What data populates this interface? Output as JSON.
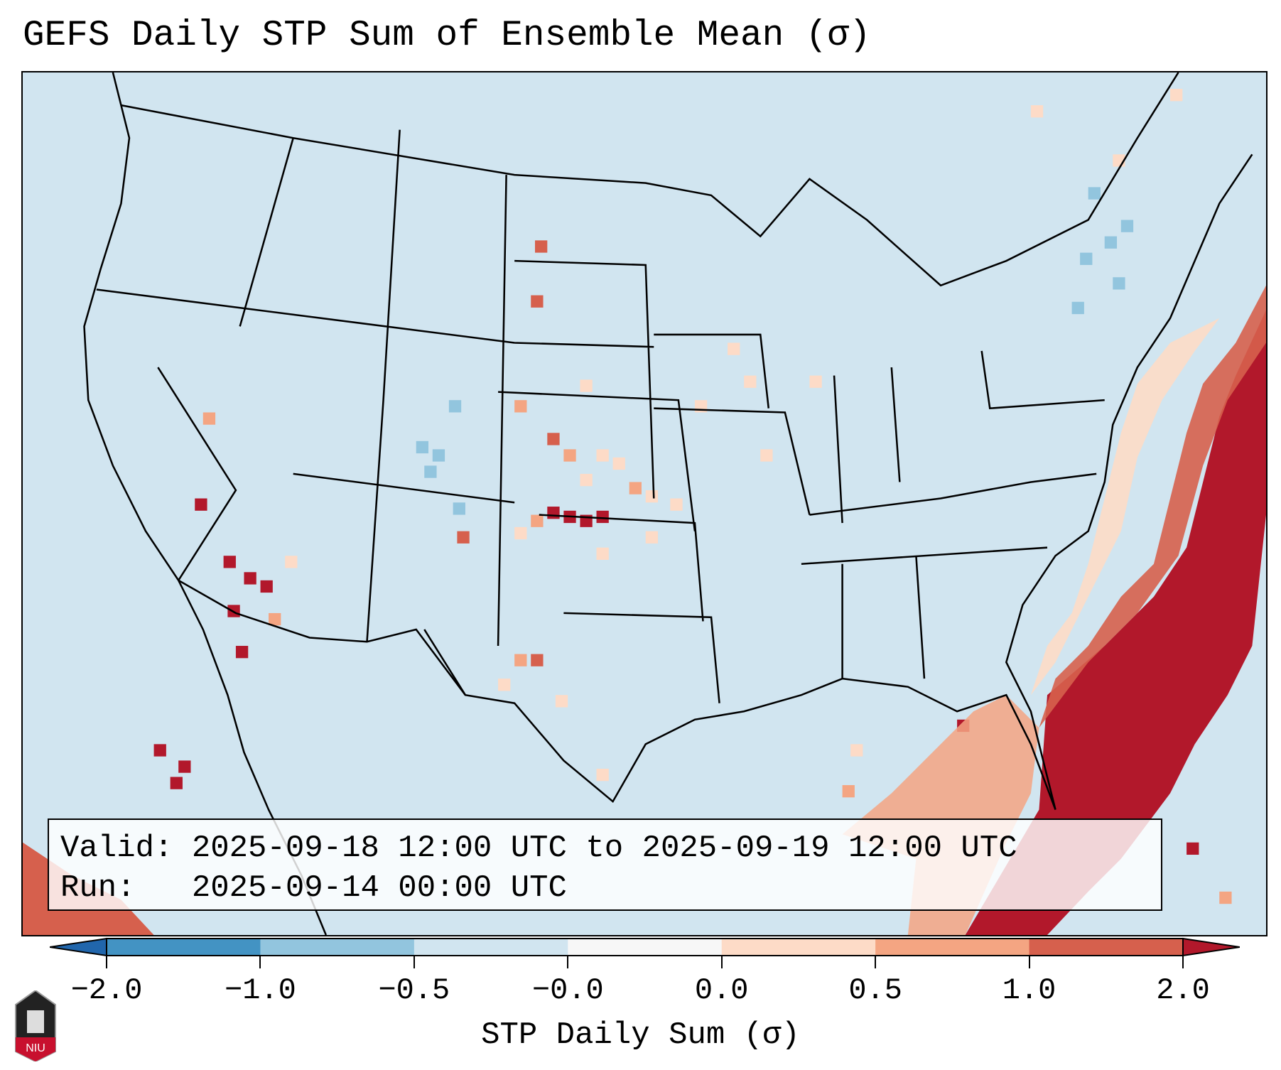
{
  "title": "GEFS Daily STP Sum of Ensemble Mean (σ)",
  "info_box": {
    "valid_label": "Valid:",
    "valid_value": "2025-09-18 12:00 UTC to 2025-09-19 12:00 UTC",
    "run_label": "Run:",
    "run_value": "2025-09-14 00:00 UTC"
  },
  "colorbar": {
    "label": "STP Daily Sum (σ)",
    "ticks": [
      "−2.0",
      "−1.0",
      "−0.5",
      "−0.0",
      "0.0",
      "0.5",
      "1.0",
      "2.0"
    ],
    "colors": [
      "#2166ac",
      "#4393c3",
      "#92c5de",
      "#d1e5f0",
      "#f7f7f7",
      "#fddbc7",
      "#f4a582",
      "#d6604d",
      "#b2182b"
    ]
  },
  "logo": {
    "text": "NIU"
  },
  "icons": [
    "niu-logo-icon"
  ]
}
